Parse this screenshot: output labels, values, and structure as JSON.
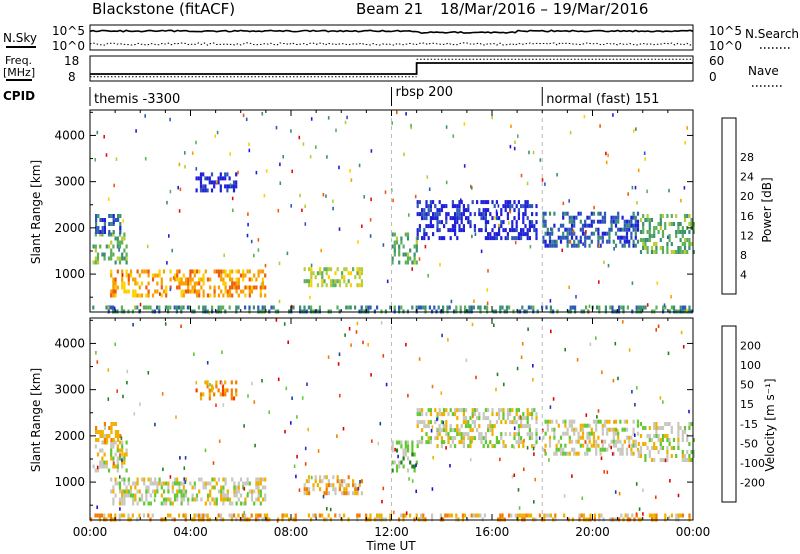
{
  "header": {
    "radar_title": "Blackstone (fitACF)",
    "beam_label": "Beam 21",
    "date_range": "18/Mar/2016 – 19/Mar/2016"
  },
  "noise_panel": {
    "left_label": "N.Sky",
    "right_label": "N.Search",
    "left_ticks": [
      "10^5",
      "10^0"
    ],
    "right_ticks": [
      "10^5",
      "10^0"
    ]
  },
  "freq_panel": {
    "left_label_line1": "Freq.",
    "left_label_line2": "[MHz]",
    "right_label": "Nave",
    "left_ticks": [
      "18",
      "8"
    ],
    "right_ticks": [
      "60",
      "0"
    ],
    "freq_step_hour": 13.0,
    "nave_low": 8,
    "nave_high": 52
  },
  "cpid_panel": {
    "label": "CPID",
    "segments": [
      {
        "start_hour": 0,
        "text": "themis -3300"
      },
      {
        "start_hour": 12.0,
        "text": "rbsp 200"
      },
      {
        "start_hour": 18.0,
        "text": "normal (fast) 151"
      }
    ]
  },
  "chart_data": [
    {
      "type": "heatmap",
      "name": "power",
      "ylabel": "Slant Range [km]",
      "xlabel": "",
      "ylim": [
        180,
        4550
      ],
      "xlim_hours": [
        0,
        24
      ],
      "yticks": [
        1000,
        2000,
        3000,
        4000
      ],
      "colorbar_label": "Power [dB]",
      "colorbar_ticks": [
        "4",
        "8",
        "12",
        "16",
        "20",
        "24",
        "28"
      ],
      "colorbar_colors": [
        "#1f1fd8",
        "#2e58b8",
        "#3a8f74",
        "#5cb05a",
        "#b8cc38",
        "#ffd000",
        "#f7a000",
        "#ef5a10",
        "#e01010"
      ],
      "gate_intervals_hours": [
        12.0,
        18.0
      ],
      "echo_regions": [
        {
          "t0": 0.1,
          "t1": 1.5,
          "r0": 1250,
          "r1": 1900,
          "level": 3
        },
        {
          "t0": 0.2,
          "t1": 1.2,
          "r0": 1950,
          "r1": 2300,
          "level": 1
        },
        {
          "t0": 0.8,
          "t1": 7.0,
          "r0": 550,
          "r1": 1100,
          "level": 6
        },
        {
          "t0": 8.5,
          "t1": 10.8,
          "r0": 750,
          "r1": 1150,
          "level": 4
        },
        {
          "t0": 4.2,
          "t1": 5.8,
          "r0": 2850,
          "r1": 3200,
          "level": 0
        },
        {
          "t0": 12.0,
          "t1": 13.0,
          "r0": 1250,
          "r1": 1900,
          "level": 3
        },
        {
          "t0": 13.0,
          "t1": 17.8,
          "r0": 1800,
          "r1": 2600,
          "level": 0
        },
        {
          "t0": 18.0,
          "t1": 21.8,
          "r0": 1650,
          "r1": 2350,
          "level": 1
        },
        {
          "t0": 21.8,
          "t1": 24.0,
          "r0": 1450,
          "r1": 2300,
          "level": 3
        },
        {
          "t0": 0.0,
          "t1": 24.0,
          "r0": 200,
          "r1": 320,
          "level": 2
        }
      ]
    },
    {
      "type": "heatmap",
      "name": "velocity",
      "ylabel": "Slant Range [km]",
      "xlabel": "Time UT",
      "ylim": [
        180,
        4550
      ],
      "xlim_hours": [
        0,
        24
      ],
      "yticks": [
        1000,
        2000,
        3000,
        4000
      ],
      "xticks": [
        "00:00",
        "04:00",
        "08:00",
        "12:00",
        "16:00",
        "20:00",
        "00:00"
      ],
      "colorbar_label": "Velocity [m s⁻¹]",
      "colorbar_ticks": [
        "-200",
        "-100",
        "-50",
        "-15",
        "15",
        "50",
        "100",
        "200"
      ],
      "colorbar_colors": [
        "#e00000",
        "#f04000",
        "#f57a00",
        "#f0b000",
        "#c8c8c0",
        "#60c830",
        "#208020",
        "#1a3fa0",
        "#1818c8"
      ],
      "gate_intervals_hours": [
        12.0,
        18.0
      ],
      "echo_regions": [
        {
          "t0": 0.1,
          "t1": 1.5,
          "r0": 1250,
          "r1": 1900,
          "level": 4
        },
        {
          "t0": 0.2,
          "t1": 1.2,
          "r0": 1950,
          "r1": 2300,
          "level": 3
        },
        {
          "t0": 0.8,
          "t1": 7.0,
          "r0": 550,
          "r1": 1100,
          "level": 4
        },
        {
          "t0": 8.5,
          "t1": 10.8,
          "r0": 750,
          "r1": 1150,
          "level": 3
        },
        {
          "t0": 4.2,
          "t1": 5.8,
          "r0": 2850,
          "r1": 3200,
          "level": 2
        },
        {
          "t0": 12.0,
          "t1": 13.0,
          "r0": 1250,
          "r1": 1900,
          "level": 5
        },
        {
          "t0": 13.0,
          "t1": 17.8,
          "r0": 1800,
          "r1": 2600,
          "level": 4
        },
        {
          "t0": 18.0,
          "t1": 21.8,
          "r0": 1650,
          "r1": 2350,
          "level": 4
        },
        {
          "t0": 21.8,
          "t1": 24.0,
          "r0": 1450,
          "r1": 2300,
          "level": 4
        },
        {
          "t0": 0.0,
          "t1": 24.0,
          "r0": 200,
          "r1": 320,
          "level": 3
        }
      ]
    }
  ]
}
